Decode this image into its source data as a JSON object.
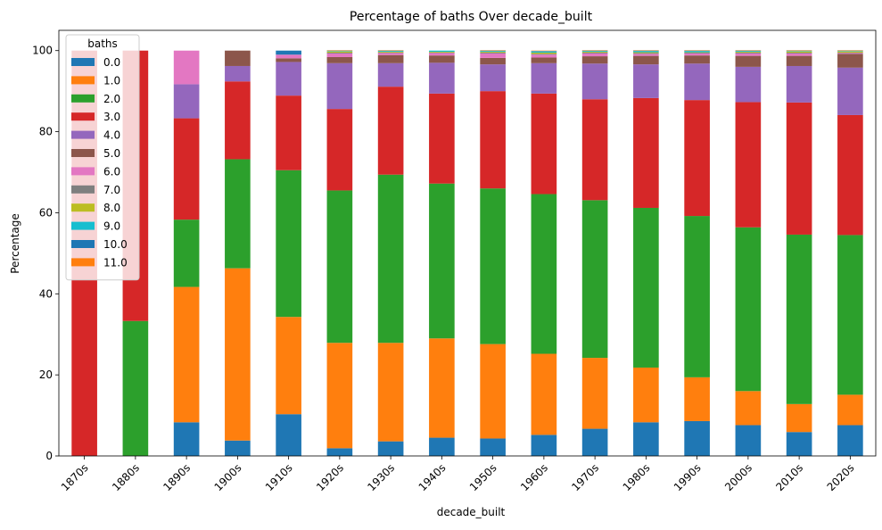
{
  "chart_data": {
    "type": "bar",
    "stacked": true,
    "title": "Percentage of baths Over decade_built",
    "xlabel": "decade_built",
    "ylabel": "Percentage",
    "ylim": [
      0,
      105
    ],
    "yticks": [
      0,
      20,
      40,
      60,
      80,
      100
    ],
    "grid": false,
    "legend_title": "baths",
    "legend_position": "upper-left",
    "categories": [
      "1870s",
      "1880s",
      "1890s",
      "1900s",
      "1910s",
      "1920s",
      "1930s",
      "1940s",
      "1950s",
      "1960s",
      "1970s",
      "1980s",
      "1990s",
      "2000s",
      "2010s",
      "2020s"
    ],
    "series": [
      {
        "name": "0.0",
        "color": "#1f77b4",
        "values": [
          0,
          0,
          8.3,
          3.8,
          10.3,
          1.9,
          3.6,
          4.5,
          4.3,
          5.2,
          6.7,
          8.3,
          8.6,
          7.6,
          5.9,
          7.6
        ]
      },
      {
        "name": "1.0",
        "color": "#ff7f0e",
        "values": [
          0,
          0,
          33.4,
          42.5,
          24.0,
          26.0,
          24.3,
          24.5,
          23.3,
          20.0,
          17.5,
          13.5,
          10.8,
          8.4,
          6.9,
          7.5
        ]
      },
      {
        "name": "2.0",
        "color": "#2ca02c",
        "values": [
          0,
          33.3,
          16.6,
          26.9,
          36.2,
          37.6,
          41.5,
          38.2,
          38.4,
          39.4,
          38.9,
          39.4,
          39.8,
          40.4,
          41.8,
          39.4
        ]
      },
      {
        "name": "3.0",
        "color": "#d62728",
        "values": [
          100,
          66.7,
          25.0,
          19.2,
          18.4,
          20.1,
          21.7,
          22.2,
          24.0,
          24.8,
          24.9,
          27.1,
          28.6,
          30.9,
          32.6,
          29.6
        ]
      },
      {
        "name": "4.0",
        "color": "#9467bd",
        "values": [
          0,
          0,
          8.4,
          3.8,
          8.3,
          11.3,
          5.8,
          7.6,
          6.6,
          7.5,
          8.8,
          8.3,
          9.0,
          8.7,
          9.0,
          11.7
        ]
      },
      {
        "name": "5.0",
        "color": "#8c564b",
        "values": [
          0,
          0,
          0,
          3.8,
          0.9,
          1.5,
          2.0,
          1.8,
          1.6,
          1.4,
          1.8,
          2.1,
          2.0,
          2.7,
          2.5,
          3.4
        ]
      },
      {
        "name": "6.0",
        "color": "#e377c2",
        "values": [
          0,
          0,
          8.3,
          0,
          0.9,
          0.9,
          0.5,
          0.6,
          1.1,
          0.7,
          0.7,
          0.5,
          0.5,
          0.6,
          0.6,
          0.2
        ]
      },
      {
        "name": "7.0",
        "color": "#7f7f7f",
        "values": [
          0,
          0,
          0,
          0,
          0,
          0.2,
          0.1,
          0.1,
          0.2,
          0.2,
          0.2,
          0.2,
          0.2,
          0.2,
          0.2,
          0.1
        ]
      },
      {
        "name": "8.0",
        "color": "#bcbd22",
        "values": [
          0,
          0,
          0,
          0,
          0,
          0.3,
          0.2,
          0.2,
          0.2,
          0.3,
          0.2,
          0.2,
          0.1,
          0.2,
          0.3,
          0.3
        ]
      },
      {
        "name": "9.0",
        "color": "#17becf",
        "values": [
          0,
          0,
          0,
          0,
          0,
          0.1,
          0.2,
          0.3,
          0.2,
          0.3,
          0.2,
          0.3,
          0.3,
          0.2,
          0.1,
          0.1
        ]
      },
      {
        "name": "10.0",
        "color": "#1f77b4",
        "values": [
          0,
          0,
          0,
          0,
          1.0,
          0.1,
          0.1,
          0.0,
          0.1,
          0.1,
          0.1,
          0.1,
          0.1,
          0.1,
          0.1,
          0.1
        ]
      },
      {
        "name": "11.0",
        "color": "#ff7f0e",
        "values": [
          0,
          0,
          0,
          0,
          0,
          0.1,
          0.1,
          0.0,
          0.1,
          0.1,
          0.1,
          0.1,
          0.1,
          0.1,
          0.1,
          0.1
        ]
      }
    ]
  }
}
